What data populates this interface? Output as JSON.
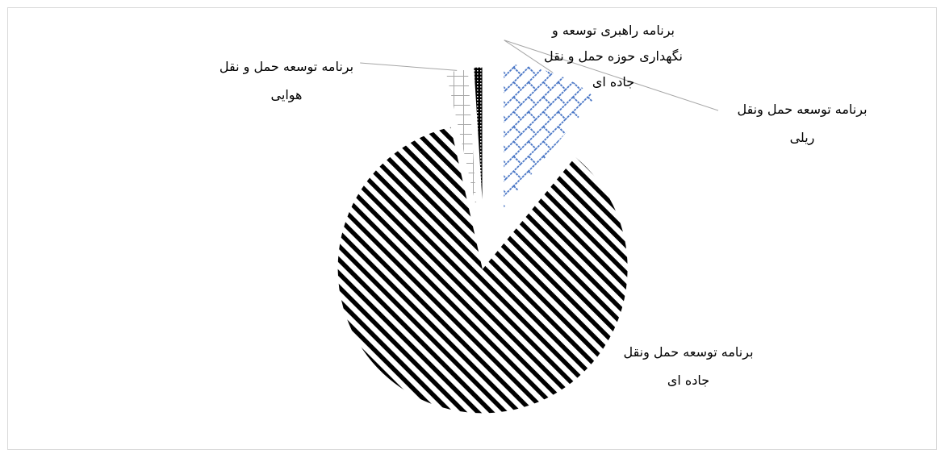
{
  "chart_data": {
    "type": "pie",
    "categories": [
      "برنامه توسعه حمل ونقل ریلی",
      "برنامه توسعه حمل ونقل جاده ای",
      "برنامه توسعه حمل و نقل هوایی",
      "برنامه راهبری توسعه و نگهداری حوزه حمل و نقل جاده ای"
    ],
    "values": [
      11.0,
      85.5,
      2.5,
      1.0
    ],
    "exploded": true,
    "legend": "none",
    "labels": [
      {
        "line1": "برنامه  توسعه حمل ونقل",
        "line2": "ریلی"
      },
      {
        "line1": "برنامه  توسعه حمل ونقل",
        "line2": "جاده ای"
      },
      {
        "line1": "برنامه  توسعه حمل و نقل",
        "line2": "هوایی"
      },
      {
        "line1": "برنامه  راهبری  توسعه و",
        "line2": "نگهداری  حوزه  حمل و نقل",
        "line3": "جاده ای"
      }
    ],
    "slice_styles": [
      {
        "pattern": "blue-brick",
        "color": "#4472c4"
      },
      {
        "pattern": "diagonal-stripes",
        "color": "#000000"
      },
      {
        "pattern": "grid",
        "color": "#a6a6a6"
      },
      {
        "pattern": "dotted-dark",
        "color": "#000000"
      }
    ]
  }
}
